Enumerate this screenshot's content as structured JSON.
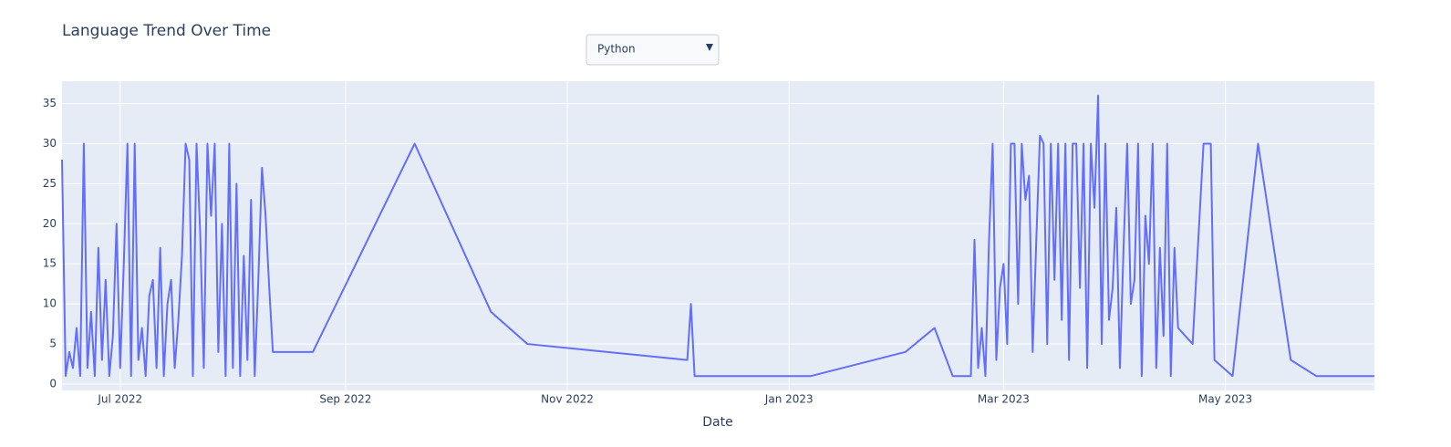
{
  "chart_data": {
    "type": "line",
    "title": "Language Trend Over Time",
    "xlabel": "Date",
    "dropdown": {
      "selected": "Python"
    },
    "series": [
      {
        "color": "#636efa",
        "x": [
          "2022-06-15",
          "2022-06-16",
          "2022-06-17",
          "2022-06-18",
          "2022-06-19",
          "2022-06-20",
          "2022-06-21",
          "2022-06-22",
          "2022-06-23",
          "2022-06-24",
          "2022-06-25",
          "2022-06-26",
          "2022-06-27",
          "2022-06-28",
          "2022-06-29",
          "2022-06-30",
          "2022-07-01",
          "2022-07-02",
          "2022-07-03",
          "2022-07-04",
          "2022-07-05",
          "2022-07-06",
          "2022-07-07",
          "2022-07-08",
          "2022-07-09",
          "2022-07-10",
          "2022-07-11",
          "2022-07-12",
          "2022-07-13",
          "2022-07-14",
          "2022-07-15",
          "2022-07-16",
          "2022-07-17",
          "2022-07-18",
          "2022-07-19",
          "2022-07-20",
          "2022-07-21",
          "2022-07-22",
          "2022-07-23",
          "2022-07-24",
          "2022-07-25",
          "2022-07-26",
          "2022-07-27",
          "2022-07-28",
          "2022-07-29",
          "2022-07-30",
          "2022-07-31",
          "2022-08-01",
          "2022-08-02",
          "2022-08-03",
          "2022-08-04",
          "2022-08-05",
          "2022-08-06",
          "2022-08-07",
          "2022-08-08",
          "2022-08-09",
          "2022-08-10",
          "2022-08-11",
          "2022-08-12",
          "2022-08-23",
          "2022-09-20",
          "2022-10-11",
          "2022-10-21",
          "2022-12-04",
          "2022-12-05",
          "2022-12-06",
          "2023-01-07",
          "2023-02-02",
          "2023-02-10",
          "2023-02-15",
          "2023-02-20",
          "2023-02-21",
          "2023-02-22",
          "2023-02-23",
          "2023-02-24",
          "2023-02-25",
          "2023-02-26",
          "2023-02-27",
          "2023-02-28",
          "2023-03-01",
          "2023-03-02",
          "2023-03-03",
          "2023-03-04",
          "2023-03-05",
          "2023-03-06",
          "2023-03-07",
          "2023-03-08",
          "2023-03-09",
          "2023-03-10",
          "2023-03-11",
          "2023-03-12",
          "2023-03-13",
          "2023-03-14",
          "2023-03-15",
          "2023-03-16",
          "2023-03-17",
          "2023-03-18",
          "2023-03-19",
          "2023-03-20",
          "2023-03-21",
          "2023-03-22",
          "2023-03-23",
          "2023-03-24",
          "2023-03-25",
          "2023-03-26",
          "2023-03-27",
          "2023-03-28",
          "2023-03-29",
          "2023-03-30",
          "2023-03-31",
          "2023-04-01",
          "2023-04-02",
          "2023-04-03",
          "2023-04-04",
          "2023-04-05",
          "2023-04-06",
          "2023-04-07",
          "2023-04-08",
          "2023-04-09",
          "2023-04-10",
          "2023-04-11",
          "2023-04-12",
          "2023-04-13",
          "2023-04-14",
          "2023-04-15",
          "2023-04-16",
          "2023-04-17",
          "2023-04-18",
          "2023-04-22",
          "2023-04-25",
          "2023-04-27",
          "2023-04-28",
          "2023-05-03",
          "2023-05-10",
          "2023-05-19",
          "2023-05-26",
          "2023-06-11"
        ],
        "values": [
          28,
          1,
          4,
          2,
          7,
          1,
          30,
          2,
          9,
          1,
          17,
          3,
          13,
          1,
          6,
          20,
          2,
          15,
          30,
          1,
          30,
          3,
          7,
          1,
          11,
          13,
          2,
          17,
          1,
          10,
          13,
          2,
          8,
          16,
          30,
          28,
          1,
          30,
          19,
          2,
          30,
          21,
          30,
          4,
          20,
          1,
          30,
          2,
          25,
          1,
          16,
          3,
          23,
          1,
          13,
          27,
          21,
          12,
          4,
          4,
          30,
          9,
          5,
          3,
          10,
          1,
          1,
          4,
          7,
          1,
          1,
          18,
          2,
          7,
          1,
          18,
          30,
          3,
          12,
          15,
          5,
          30,
          30,
          10,
          30,
          23,
          26,
          4,
          18,
          31,
          30,
          5,
          30,
          13,
          30,
          8,
          30,
          3,
          30,
          30,
          12,
          30,
          2,
          30,
          22,
          36,
          5,
          30,
          8,
          12,
          22,
          2,
          17,
          30,
          10,
          13,
          30,
          1,
          21,
          15,
          30,
          2,
          17,
          6,
          30,
          1,
          17,
          7,
          5,
          30,
          30,
          3,
          1,
          30,
          3,
          1,
          1
        ]
      }
    ],
    "xlim": [
      "2022-06-15",
      "2023-06-11"
    ],
    "xticks": [
      {
        "value": "2022-07-01",
        "label": "Jul 2022"
      },
      {
        "value": "2022-09-01",
        "label": "Sep 2022"
      },
      {
        "value": "2022-11-01",
        "label": "Nov 2022"
      },
      {
        "value": "2023-01-01",
        "label": "Jan 2023"
      },
      {
        "value": "2023-03-01",
        "label": "Mar 2023"
      },
      {
        "value": "2023-05-01",
        "label": "May 2023"
      }
    ],
    "ylim": [
      -0.8,
      37.8
    ],
    "yticks": [
      0,
      5,
      10,
      15,
      20,
      25,
      30,
      35
    ],
    "grid": true
  }
}
